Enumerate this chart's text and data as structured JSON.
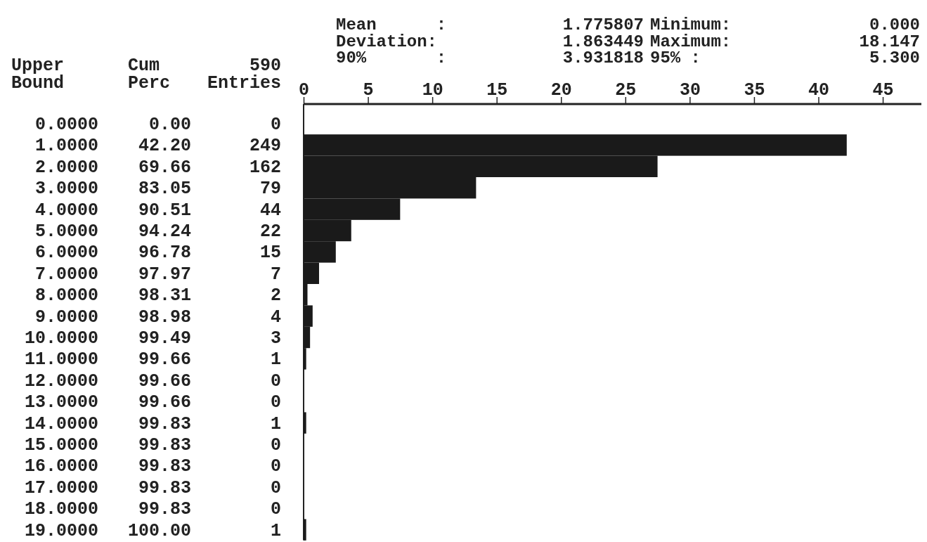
{
  "chart_data": {
    "type": "bar",
    "orientation": "horizontal",
    "categories": [
      "0.0000",
      "1.0000",
      "2.0000",
      "3.0000",
      "4.0000",
      "5.0000",
      "6.0000",
      "7.0000",
      "8.0000",
      "9.0000",
      "10.0000",
      "11.0000",
      "12.0000",
      "13.0000",
      "14.0000",
      "15.0000",
      "16.0000",
      "17.0000",
      "18.0000",
      "19.0000"
    ],
    "y2_categories": [
      "0",
      "249",
      "162",
      "79",
      "44",
      "22",
      "15",
      "7",
      "2",
      "4",
      "3",
      "1",
      "0",
      "0",
      "1",
      "0",
      "0",
      "0",
      "0",
      "1"
    ],
    "series": [
      {
        "color": "#1a1a1a",
        "axis": "x2",
        "values": [
          0,
          42.2,
          27.5,
          13.4,
          7.5,
          3.7,
          2.5,
          1.2,
          0.3,
          0.7,
          0.5,
          0.2,
          0,
          0,
          0.2,
          0,
          0,
          0,
          0,
          0.2
        ]
      }
    ],
    "x2lim": [
      0,
      48
    ],
    "x2ticks": [
      0,
      5,
      10,
      15,
      20,
      25,
      30,
      35,
      40,
      45
    ],
    "annotations": [
      "Upper Bound",
      "Cum Perc",
      "590 Entries",
      "Mean : 1.775807",
      "Minimum: 0.000",
      "Deviation: 1.863449",
      "Maximum: 18.147",
      "90% : 3.931818",
      "95% : 5.300",
      "0.00",
      "42.20",
      "69.66",
      "83.05",
      "90.51",
      "94.24",
      "96.78",
      "97.97",
      "98.31",
      "98.98",
      "99.49",
      "99.66",
      "99.66",
      "99.66",
      "99.83",
      "99.83",
      "99.83",
      "99.83",
      "99.83",
      "100.00"
    ]
  }
}
